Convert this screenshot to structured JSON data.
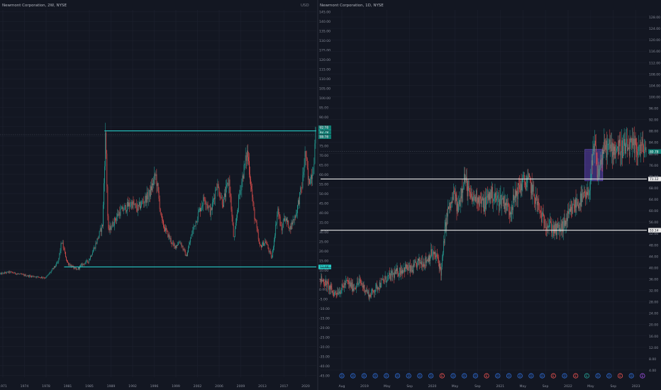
{
  "colors": {
    "background": "#131722",
    "grid": "#1f2330",
    "axis_text": "#8a8f9c",
    "up": "#26a69a",
    "down": "#ef5350",
    "cyan_line": "#25c6c2",
    "white_line": "#e8e8e8",
    "highlight": "#5b3fb0",
    "event_blue": "#2f6fdc",
    "event_green": "#26a69a",
    "event_red": "#ef5350",
    "event_purple": "#9c4fe0"
  },
  "chart_data": [
    {
      "type": "candlestick",
      "title": "Newmont Corporation, 2W, NYSE",
      "currency": "USD",
      "x_ticks": [
        "1971",
        "1974",
        "1978",
        "1981",
        "1985",
        "1989",
        "1992",
        "1996",
        "1999",
        "2002",
        "2006",
        "2009",
        "2013",
        "2017",
        "2020"
      ],
      "x_start": 1970.5,
      "x_end": 2022.3,
      "y_ticks": [
        "145.00",
        "140.00",
        "135.00",
        "130.00",
        "125.00",
        "120.00",
        "115.00",
        "110.00",
        "105.00",
        "100.00",
        "95.00",
        "90.00",
        "85.00",
        "80.00",
        "75.00",
        "70.00",
        "65.00",
        "60.00",
        "55.00",
        "50.00",
        "45.00",
        "40.00",
        "35.00",
        "30.00",
        "25.00",
        "20.00",
        "15.00",
        "10.00",
        "5.00",
        "0.00",
        "-5.00",
        "-10.00",
        "-15.00",
        "-20.00",
        "-25.00",
        "-30.00",
        "-35.00",
        "-40.00",
        "-45.00"
      ],
      "ylim": [
        -46,
        146
      ],
      "price_path": [
        [
          1970.5,
          8
        ],
        [
          1972,
          9
        ],
        [
          1975,
          7
        ],
        [
          1978,
          6
        ],
        [
          1980,
          14
        ],
        [
          1980.6,
          25
        ],
        [
          1981.5,
          14
        ],
        [
          1983,
          10
        ],
        [
          1984,
          13
        ],
        [
          1985,
          15
        ],
        [
          1986,
          22
        ],
        [
          1987.3,
          34
        ],
        [
          1987.8,
          83
        ],
        [
          1988.2,
          30
        ],
        [
          1990,
          40
        ],
        [
          1992,
          45
        ],
        [
          1993,
          42
        ],
        [
          1995,
          50
        ],
        [
          1996,
          60
        ],
        [
          1997,
          35
        ],
        [
          1999,
          22
        ],
        [
          2000,
          25
        ],
        [
          2001,
          17
        ],
        [
          2002,
          30
        ],
        [
          2003,
          40
        ],
        [
          2004,
          48
        ],
        [
          2005,
          40
        ],
        [
          2006,
          55
        ],
        [
          2007,
          45
        ],
        [
          2008,
          57
        ],
        [
          2008.8,
          25
        ],
        [
          2009.5,
          45
        ],
        [
          2010,
          55
        ],
        [
          2011,
          72
        ],
        [
          2011.6,
          55
        ],
        [
          2012,
          42
        ],
        [
          2013,
          22
        ],
        [
          2014,
          25
        ],
        [
          2015,
          16
        ],
        [
          2016,
          42
        ],
        [
          2016.6,
          30
        ],
        [
          2017,
          38
        ],
        [
          2018,
          32
        ],
        [
          2019,
          40
        ],
        [
          2020,
          55
        ],
        [
          2020.5,
          72
        ],
        [
          2021,
          55
        ],
        [
          2021.8,
          63
        ],
        [
          2022.2,
          82
        ]
      ],
      "levels": [
        {
          "label": "82.78",
          "value": 82.78,
          "x_from": 1987.6
        },
        {
          "label": "11.66",
          "value": 11.66,
          "x_from": 1981.0
        }
      ],
      "last_price": 80.78,
      "last_price_label": "80.78",
      "sub_label_1": "82.78",
      "sub_label_2": "82.78"
    },
    {
      "type": "candlestick",
      "title": "Newmont Corporation, 1D, NYSE",
      "currency": "USD",
      "x_ticks": [
        "Aug",
        "2019",
        "May",
        "Sep",
        "2020",
        "May",
        "Sep",
        "2021",
        "May",
        "Sep",
        "2022",
        "May",
        "Sep",
        "2023"
      ],
      "x_start": 0,
      "x_end": 1000,
      "y_ticks": [
        "128.00",
        "124.00",
        "120.00",
        "116.00",
        "112.00",
        "108.00",
        "104.00",
        "100.00",
        "96.00",
        "92.00",
        "88.00",
        "84.00",
        "80.00",
        "76.00",
        "72.00",
        "68.00",
        "64.00",
        "60.00",
        "56.00",
        "52.00",
        "48.00",
        "44.00",
        "40.00",
        "36.00",
        "32.00",
        "28.00",
        "24.00",
        "20.00",
        "16.00",
        "12.00",
        "8.00",
        "4.00"
      ],
      "ylim": [
        1.5,
        130.5
      ],
      "price_path": [
        [
          0,
          36
        ],
        [
          20,
          34
        ],
        [
          40,
          31
        ],
        [
          60,
          32
        ],
        [
          80,
          35
        ],
        [
          100,
          33
        ],
        [
          120,
          35
        ],
        [
          140,
          32
        ],
        [
          150,
          30
        ],
        [
          170,
          33
        ],
        [
          200,
          36
        ],
        [
          230,
          38
        ],
        [
          260,
          40
        ],
        [
          280,
          39
        ],
        [
          300,
          42
        ],
        [
          320,
          42
        ],
        [
          340,
          45
        ],
        [
          360,
          43
        ],
        [
          370,
          38
        ],
        [
          380,
          52
        ],
        [
          390,
          60
        ],
        [
          400,
          62
        ],
        [
          410,
          66
        ],
        [
          420,
          60
        ],
        [
          440,
          72
        ],
        [
          460,
          64
        ],
        [
          480,
          65
        ],
        [
          500,
          62
        ],
        [
          520,
          66
        ],
        [
          540,
          64
        ],
        [
          560,
          64
        ],
        [
          580,
          60
        ],
        [
          600,
          66
        ],
        [
          620,
          70
        ],
        [
          640,
          70
        ],
        [
          660,
          64
        ],
        [
          680,
          57
        ],
        [
          700,
          55
        ],
        [
          720,
          53
        ],
        [
          740,
          54
        ],
        [
          760,
          58
        ],
        [
          780,
          62
        ],
        [
          800,
          64
        ],
        [
          820,
          65
        ],
        [
          840,
          83
        ],
        [
          850,
          72
        ],
        [
          860,
          78
        ],
        [
          870,
          82
        ]
      ],
      "levels": [
        {
          "label": "71.12",
          "value": 71.12,
          "x_from": 0
        },
        {
          "label": "53.14",
          "value": 53.14,
          "x_from": 0
        }
      ],
      "highlight_zone": {
        "x_from": 810,
        "x_to": 865,
        "y_from": 70.5,
        "y_to": 81.5
      },
      "last_price": 80.78,
      "last_price_label": "80.78",
      "event_icons": [
        {
          "x": 0.1,
          "kind": "blue",
          "glyph": "D"
        },
        {
          "x": 0.2,
          "kind": "blue",
          "glyph": "D"
        },
        {
          "x": 0.3,
          "kind": "blue",
          "glyph": "D"
        },
        {
          "x": 0.4,
          "kind": "blue",
          "glyph": "D"
        },
        {
          "x": 0.5,
          "kind": "blue",
          "glyph": "D"
        },
        {
          "x": 0.6,
          "kind": "blue",
          "glyph": "D"
        },
        {
          "x": 0.7,
          "kind": "blue",
          "glyph": "D"
        },
        {
          "x": 0.8,
          "kind": "blue",
          "glyph": "D"
        },
        {
          "x": 0.9,
          "kind": "blue",
          "glyph": "D"
        },
        {
          "x": 1.0,
          "kind": "red",
          "glyph": "E"
        },
        {
          "x": 1.1,
          "kind": "blue",
          "glyph": "D"
        },
        {
          "x": 1.2,
          "kind": "blue",
          "glyph": "D"
        },
        {
          "x": 1.3,
          "kind": "blue",
          "glyph": "D"
        },
        {
          "x": 1.4,
          "kind": "red",
          "glyph": "E"
        },
        {
          "x": 1.5,
          "kind": "blue",
          "glyph": "D"
        },
        {
          "x": 1.6,
          "kind": "blue",
          "glyph": "D"
        },
        {
          "x": 1.7,
          "kind": "blue",
          "glyph": "D"
        },
        {
          "x": 1.8,
          "kind": "blue",
          "glyph": "D"
        },
        {
          "x": 1.9,
          "kind": "blue",
          "glyph": "D"
        },
        {
          "x": 2.0,
          "kind": "red",
          "glyph": "E"
        },
        {
          "x": 2.1,
          "kind": "blue",
          "glyph": "D"
        },
        {
          "x": 2.2,
          "kind": "red",
          "glyph": "E"
        },
        {
          "x": 2.3,
          "kind": "green",
          "glyph": "E"
        },
        {
          "x": 2.4,
          "kind": "blue",
          "glyph": "D"
        },
        {
          "x": 2.5,
          "kind": "blue",
          "glyph": "D"
        },
        {
          "x": 2.6,
          "kind": "red",
          "glyph": "E"
        },
        {
          "x": 2.7,
          "kind": "blue",
          "glyph": "D"
        },
        {
          "x": 2.8,
          "kind": "purple",
          "glyph": "E"
        }
      ]
    }
  ]
}
